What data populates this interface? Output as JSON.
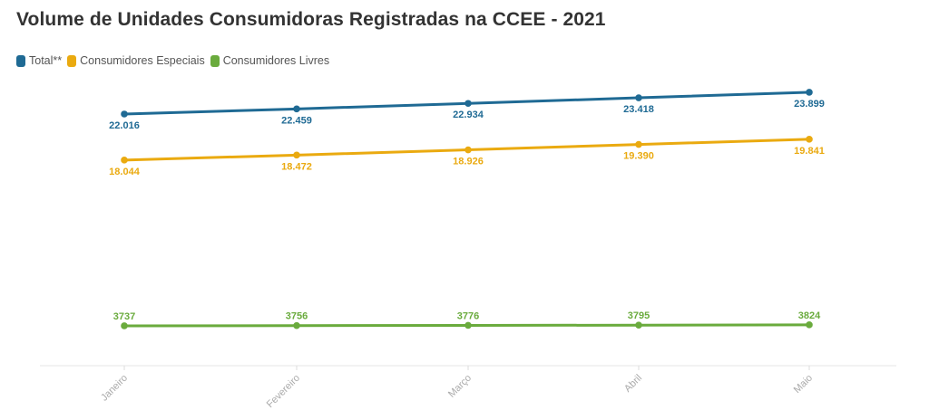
{
  "chart_data": {
    "type": "line",
    "title": "Volume de Unidades Consumidoras Registradas na CCEE - 2021",
    "categories": [
      "Janeiro",
      "Fevereiro",
      "Março",
      "Abril",
      "Maio"
    ],
    "series": [
      {
        "name": "Total**",
        "color": "#1f6a94",
        "values": [
          22016,
          22459,
          22934,
          23418,
          23899
        ],
        "labels": [
          "22.016",
          "22.459",
          "22.934",
          "23.418",
          "23.899"
        ]
      },
      {
        "name": "Consumidores Especiais",
        "color": "#eaaa10",
        "values": [
          18044,
          18472,
          18926,
          19390,
          19841
        ],
        "labels": [
          "18.044",
          "18.472",
          "18.926",
          "19.390",
          "19.841"
        ]
      },
      {
        "name": "Consumidores Livres",
        "color": "#6aab3d",
        "values": [
          3737,
          3756,
          3776,
          3795,
          3824
        ],
        "labels": [
          "3737",
          "3756",
          "3776",
          "3795",
          "3824"
        ]
      }
    ],
    "xlabel": "",
    "ylabel": "",
    "grid": false,
    "legend_position": "top-left"
  }
}
